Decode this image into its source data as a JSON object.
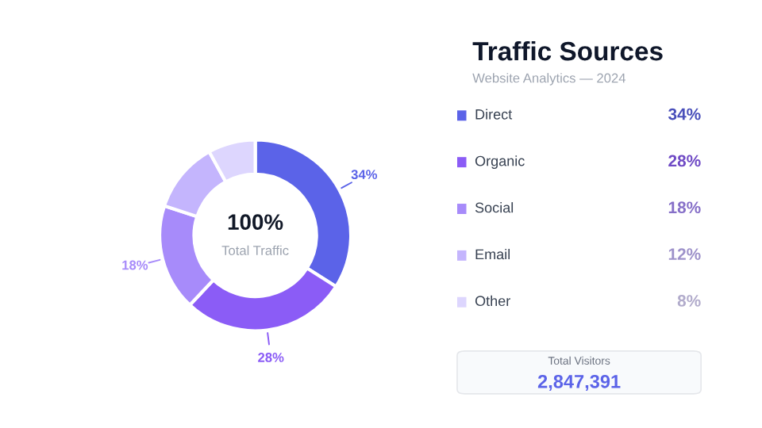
{
  "chart_data": {
    "type": "donut",
    "title": "Traffic Sources",
    "subtitle": "Website Analytics — 2024",
    "categories": [
      "Direct",
      "Organic",
      "Social",
      "Email",
      "Other"
    ],
    "values": [
      34,
      28,
      18,
      12,
      8
    ],
    "colors": [
      "#5b63e8",
      "#8b5cf6",
      "#a78bfa",
      "#c4b5fd",
      "#ddd6fe"
    ],
    "value_labels": [
      "34%",
      "28%",
      "18%",
      null,
      null
    ],
    "legend": "right",
    "annotations": [
      "100%",
      "Total Traffic",
      "Total Visitors",
      "2,847,391",
      "34%",
      "28%",
      "18%",
      "12%",
      "8%"
    ]
  }
}
